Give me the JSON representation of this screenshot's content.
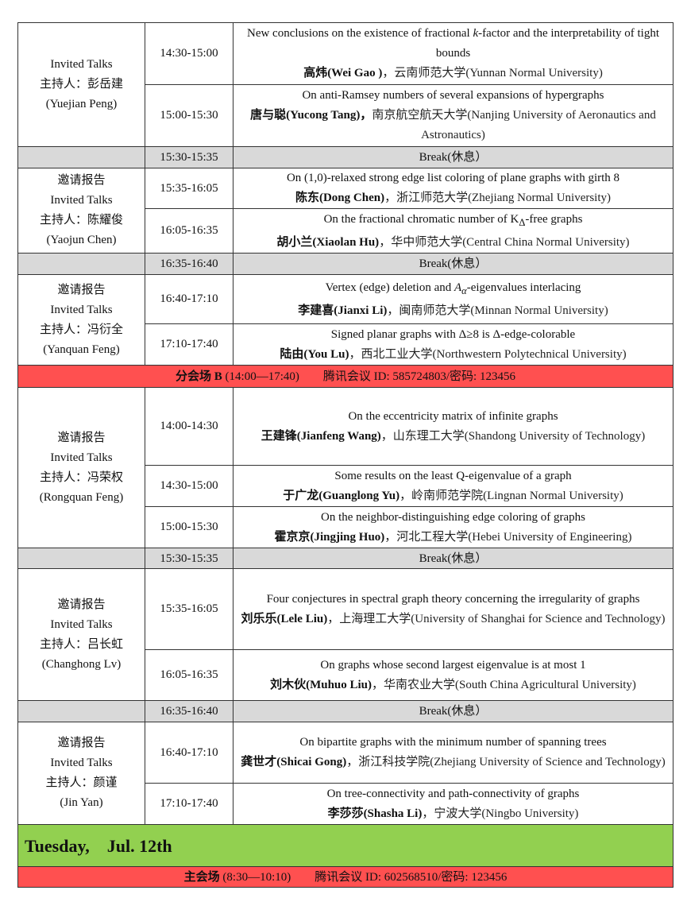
{
  "colors": {
    "break_bg": "#d9d9d9",
    "banner_bg": "#ff5050",
    "day_bg": "#92d050"
  },
  "rows": [
    {
      "type": "session",
      "chair": [
        "Invited Talks",
        "主持人：彭岳建",
        "(Yuejian Peng)"
      ],
      "talks": [
        {
          "time": "14:30-15:00",
          "title": [
            {
              "t": "New conclusions on the existence of fractional "
            },
            {
              "t": "k",
              "i": true
            },
            {
              "t": "-factor and the interpretability of tight bounds"
            }
          ],
          "speaker": "高炜(Wei Gao )",
          "affiliation": "，云南师范大学(Yunnan Normal University)"
        },
        {
          "time": "15:00-15:30",
          "title": [
            {
              "t": "On anti-Ramsey numbers of several expansions of hypergraphs"
            }
          ],
          "speaker": "唐与聪(Yucong Tang)，",
          "affiliation": "南京航空航天大学(Nanjing University of Aeronautics and Astronautics)"
        }
      ]
    },
    {
      "type": "break",
      "time": "15:30-15:35",
      "label": "Break(休息）"
    },
    {
      "type": "session",
      "chair": [
        "邀请报告",
        "Invited Talks",
        "主持人：陈耀俊",
        "(Yaojun Chen)"
      ],
      "talks": [
        {
          "time": "15:35-16:05",
          "title": [
            {
              "t": "On (1,0)-relaxed strong edge list coloring of plane graphs with girth 8"
            }
          ],
          "speaker": "陈东(Dong Chen)",
          "affiliation": "，浙江师范大学(Zhejiang Normal University)"
        },
        {
          "time": "16:05-16:35",
          "title": [
            {
              "t": "On the fractional chromatic number of K"
            },
            {
              "t": "Δ",
              "sub": true
            },
            {
              "t": "-free graphs"
            }
          ],
          "speaker": "胡小兰(Xiaolan Hu)",
          "affiliation": "，华中师范大学(Central China Normal University)"
        }
      ]
    },
    {
      "type": "break",
      "time": "16:35-16:40",
      "label": "Break(休息）"
    },
    {
      "type": "session",
      "chair": [
        "邀请报告",
        "Invited Talks",
        "主持人：冯衍全",
        "(Yanquan Feng)"
      ],
      "talks": [
        {
          "time": "16:40-17:10",
          "title": [
            {
              "t": "Vertex (edge) deletion and "
            },
            {
              "t": "A",
              "i": true
            },
            {
              "t": "α",
              "sub": true,
              "i": true
            },
            {
              "t": "-eigenvalues interlacing"
            }
          ],
          "speaker": "李建喜(Jianxi Li)",
          "affiliation": "，闽南师范大学(Minnan Normal University)"
        },
        {
          "time": "17:10-17:40",
          "title": [
            {
              "t": "Signed planar graphs with Δ≥8 is Δ-edge-colorable"
            }
          ],
          "speaker": "陆由(You Lu)",
          "affiliation": "，西北工业大学(Northwestern Polytechnical University)"
        }
      ]
    },
    {
      "type": "banner",
      "bold": "分会场 B",
      "text": " (14:00—17:40)　　腾讯会议 ID: 585724803/密码: 123456"
    },
    {
      "type": "session",
      "chair": [
        "邀请报告",
        "Invited Talks",
        "主持人：冯荣权",
        "(Rongquan Feng)"
      ],
      "talks": [
        {
          "time": "14:00-14:30",
          "title": [
            {
              "t": "On the eccentricity matrix of infinite graphs"
            }
          ],
          "speaker": "王建锋(Jianfeng Wang)",
          "affiliation": "，山东理工大学(Shandong University of Technology)"
        },
        {
          "time": "14:30-15:00",
          "title": [
            {
              "t": "Some results on the least Q-eigenvalue of a graph"
            }
          ],
          "speaker": "于广龙(Guanglong Yu)",
          "affiliation": "，岭南师范学院(Lingnan Normal University)"
        },
        {
          "time": "15:00-15:30",
          "title": [
            {
              "t": "On the neighbor-distinguishing edge coloring of graphs"
            }
          ],
          "speaker": "霍京京(Jingjing Huo)",
          "affiliation": "，河北工程大学(Hebei University of Engineering)"
        }
      ]
    },
    {
      "type": "break",
      "time": "15:30-15:35",
      "label": "Break(休息）"
    },
    {
      "type": "session",
      "chair": [
        "邀请报告",
        "Invited Talks",
        "主持人：吕长虹",
        "(Changhong Lv)"
      ],
      "talks": [
        {
          "time": "15:35-16:05",
          "title": [
            {
              "t": "Four conjectures in spectral graph theory concerning the irregularity of graphs"
            }
          ],
          "speaker": "刘乐乐(Lele Liu)",
          "affiliation": "，上海理工大学(University of Shanghai for Science and Technology)"
        },
        {
          "time": "16:05-16:35",
          "title": [
            {
              "t": "On graphs whose second largest eigenvalue is at most 1"
            }
          ],
          "speaker": "刘木伙(Muhuo Liu)",
          "affiliation": "，华南农业大学(South China Agricultural University)"
        }
      ]
    },
    {
      "type": "break",
      "time": "16:35-16:40",
      "label": "Break(休息）"
    },
    {
      "type": "session",
      "chair": [
        "邀请报告",
        "Invited Talks",
        "主持人：颜谨",
        "(Jin Yan)"
      ],
      "talks": [
        {
          "time": "16:40-17:10",
          "title": [
            {
              "t": "On bipartite graphs with the minimum number of spanning trees"
            }
          ],
          "speaker": "龚世才(Shicai Gong)",
          "affiliation": "，浙江科技学院(Zhejiang University of Science and Technology)"
        },
        {
          "time": "17:10-17:40",
          "title": [
            {
              "t": "On tree-connectivity and path-connectivity of graphs"
            }
          ],
          "speaker": "李莎莎(Shasha Li)",
          "affiliation": "，宁波大学(Ningbo University)"
        }
      ]
    },
    {
      "type": "day",
      "text": "Tuesday,　Jul. 12th"
    },
    {
      "type": "banner",
      "bold": "主会场",
      "text": "  (8:30—10:10)　　腾讯会议 ID: 602568510/密码: 123456"
    }
  ]
}
